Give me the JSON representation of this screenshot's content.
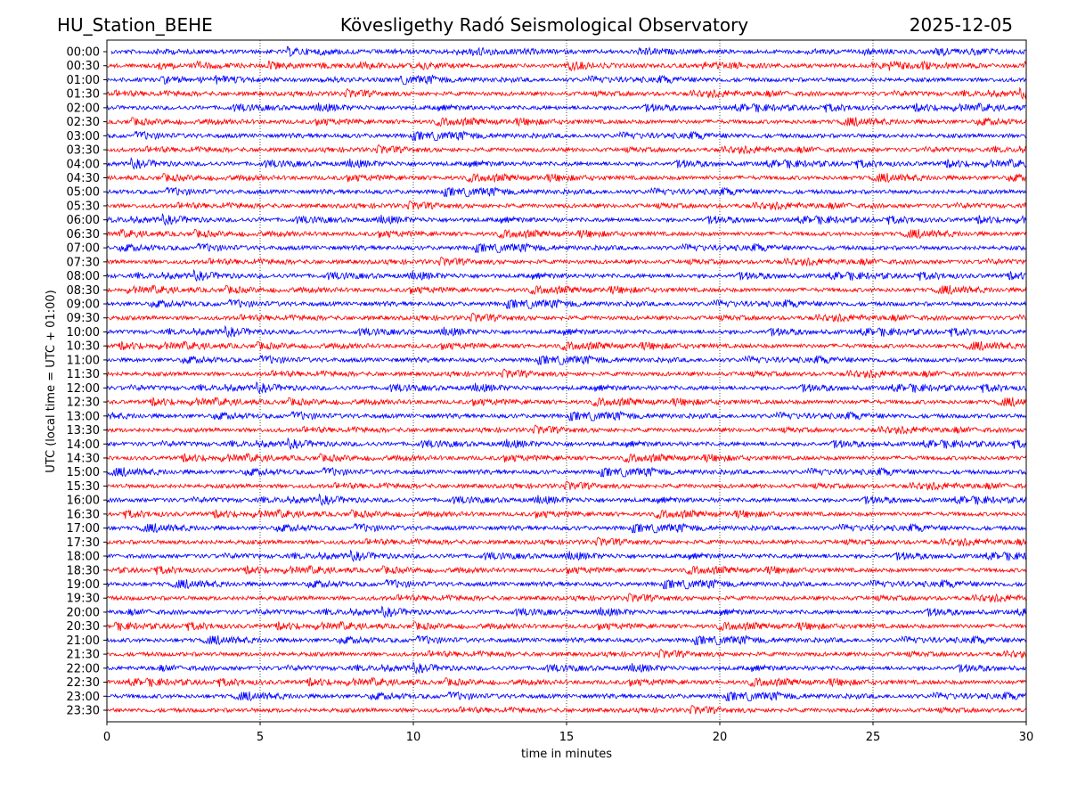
{
  "header": {
    "station": "HU_Station_BEHE",
    "title": "Kövesligethy Radó Seismological Observatory",
    "date": "2025-12-05"
  },
  "chart_data": {
    "type": "line",
    "title": "Kövesligethy Radó Seismological Observatory",
    "xlabel": "time in minutes",
    "ylabel": "UTC (local time = UTC + 01:00)",
    "xlim": [
      0,
      30
    ],
    "x_ticks": [
      "0",
      "5",
      "10",
      "15",
      "20",
      "25",
      "30"
    ],
    "grid": "vertical dotted at x ticks",
    "series_colors": [
      "#0000ff",
      "#ff0000"
    ],
    "rows": [
      "00:00",
      "00:30",
      "01:00",
      "01:30",
      "02:00",
      "02:30",
      "03:00",
      "03:30",
      "04:00",
      "04:30",
      "05:00",
      "05:30",
      "06:00",
      "06:30",
      "07:00",
      "07:30",
      "08:00",
      "08:30",
      "09:00",
      "09:30",
      "10:00",
      "10:30",
      "11:00",
      "11:30",
      "12:00",
      "12:30",
      "13:00",
      "13:30",
      "14:00",
      "14:30",
      "15:00",
      "15:30",
      "16:00",
      "16:30",
      "17:00",
      "17:30",
      "18:00",
      "18:30",
      "19:00",
      "19:30",
      "20:00",
      "20:30",
      "21:00",
      "21:30",
      "22:00",
      "22:30",
      "23:00",
      "23:30"
    ]
  }
}
